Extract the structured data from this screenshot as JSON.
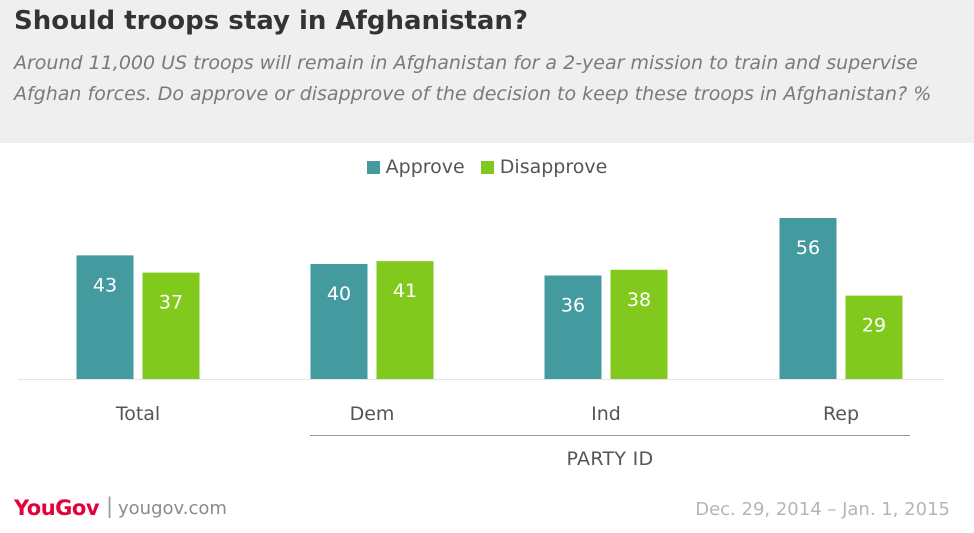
{
  "brand": {
    "logo": "YouGov",
    "site": "yougov.com",
    "accent": "#e4003a"
  },
  "date_range": "Dec. 29, 2014 – Jan. 1, 2015",
  "group_label": "PARTY ID",
  "chart_data": {
    "type": "bar",
    "title": "Should troops stay in Afghanistan?",
    "subtitle": "Around 11,000 US troops will remain in Afghanistan for a 2-year mission to train and supervise Afghan forces. Do approve or disapprove of the decision to keep these troops in Afghanistan? %",
    "categories": [
      "Total",
      "Dem",
      "Ind",
      "Rep"
    ],
    "series": [
      {
        "name": "Approve",
        "values": [
          43,
          40,
          36,
          56
        ],
        "color": "#439b9f"
      },
      {
        "name": "Disapprove",
        "values": [
          37,
          41,
          38,
          29
        ],
        "color": "#82c91e"
      }
    ],
    "ylim": [
      0,
      60
    ],
    "xlabel": "",
    "ylabel": "",
    "grid": false,
    "legend_position": "top-center",
    "data_labels": true
  }
}
